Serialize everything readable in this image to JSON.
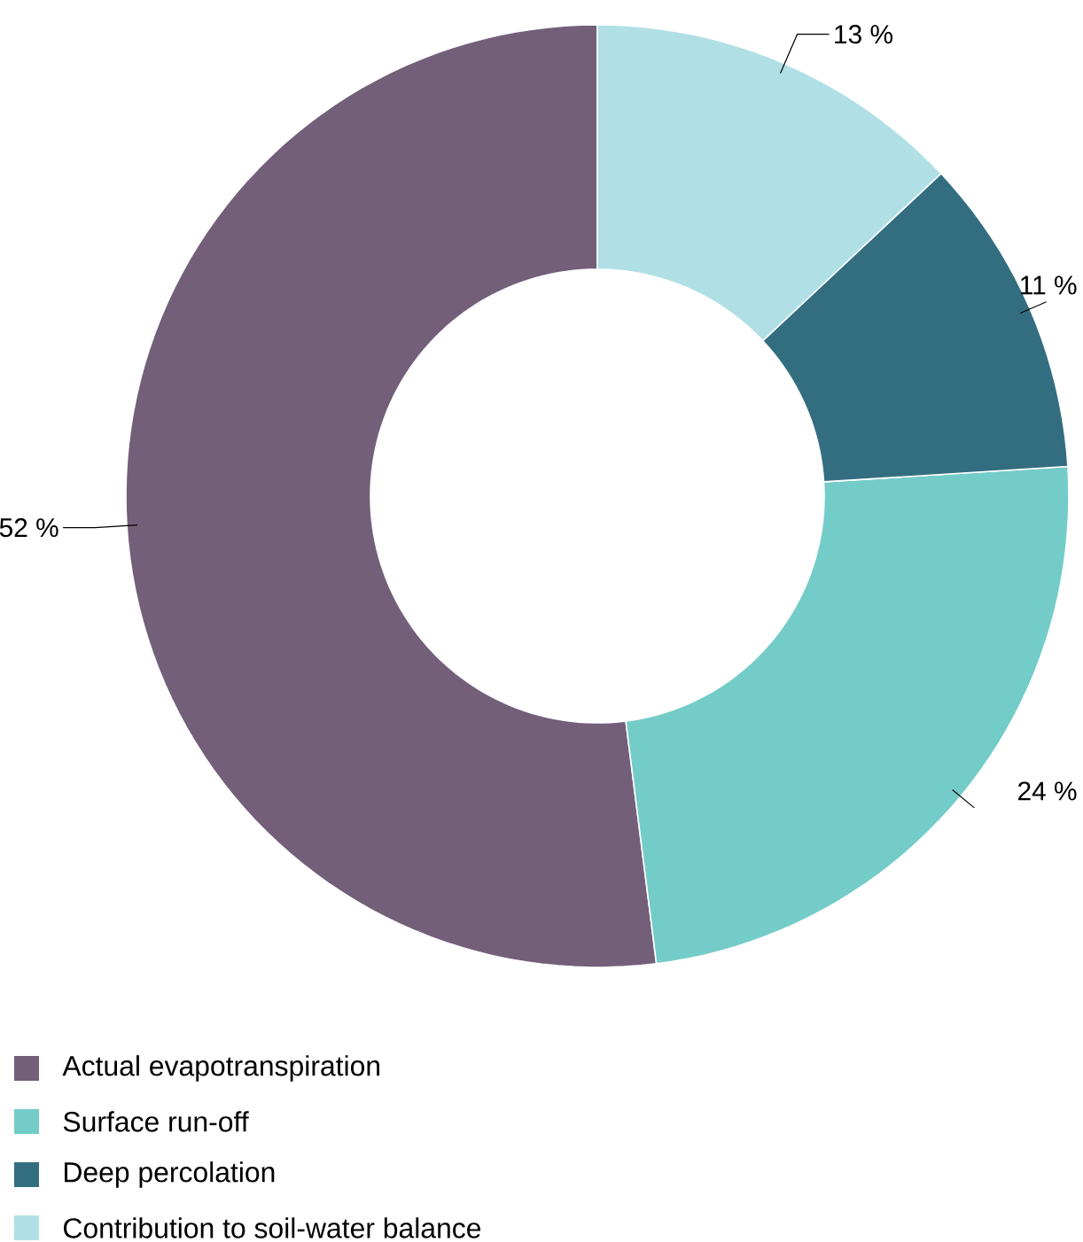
{
  "chart_data": {
    "type": "donut",
    "categories": [
      "Actual evapotranspiration",
      "Surface run-off",
      "Deep percolation",
      "Contribution to soil-water balance"
    ],
    "values": [
      52,
      24,
      11,
      13
    ],
    "colors": [
      "#735f7a",
      "#74ccc8",
      "#336e80",
      "#b0e0e6"
    ],
    "value_labels": [
      "52 %",
      "24 %",
      "11 %",
      "13 %"
    ],
    "legend": "bottom left"
  }
}
